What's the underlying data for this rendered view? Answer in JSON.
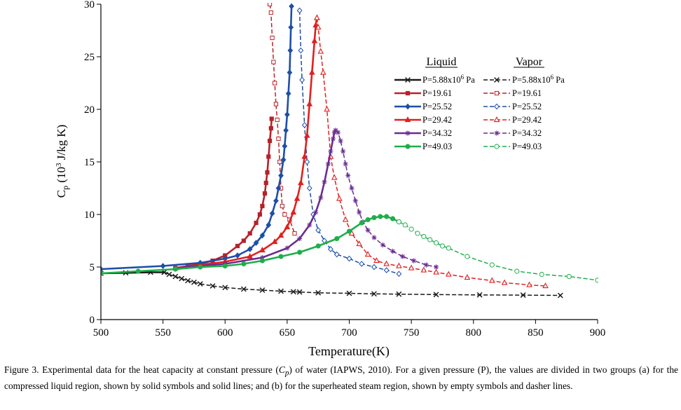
{
  "chart_data": {
    "type": "line",
    "xlabel": "Temperature(K)",
    "ylabel": "C",
    "ylabel_sub": "p",
    "ylabel_rest": " (10",
    "ylabel_sup": "3",
    "ylabel_units": " J/kg K)",
    "xlim": [
      500,
      900
    ],
    "ylim": [
      0,
      30
    ],
    "xticks": [
      500,
      550,
      600,
      650,
      700,
      750,
      800,
      850,
      900
    ],
    "yticks": [
      0,
      5,
      10,
      15,
      20,
      25,
      30
    ],
    "grid": false,
    "legend": {
      "placement": "top-right",
      "liquid_header": "Liquid",
      "vapor_header": "Vapor",
      "liquid_labels": [
        "P=5.88x10",
        "P=19.61",
        "P=25.52",
        "P=29.42",
        "P=34.32",
        "P=49.03"
      ],
      "vapor_labels": [
        "P=5.88x10",
        "P=19.61",
        "P=25.52",
        "P=29.42",
        "P=34.32",
        "P=49.03"
      ],
      "first_label_sup": "6",
      "first_label_unit": " Pa"
    },
    "series": [
      {
        "name": "P=5.88x10^6 Pa liquid",
        "phase": "liquid",
        "color": "#1a1a1a",
        "marker": "x",
        "filled": true,
        "points": [
          [
            500,
            4.4
          ],
          [
            520,
            4.45
          ],
          [
            540,
            4.5
          ],
          [
            551,
            4.5
          ]
        ]
      },
      {
        "name": "P=5.88x10^6 Pa vapor",
        "phase": "vapor",
        "color": "#1a1a1a",
        "marker": "x",
        "filled": false,
        "points": [
          [
            551,
            4.5
          ],
          [
            555,
            4.3
          ],
          [
            560,
            4.1
          ],
          [
            565,
            3.9
          ],
          [
            570,
            3.7
          ],
          [
            575,
            3.55
          ],
          [
            580,
            3.4
          ],
          [
            590,
            3.2
          ],
          [
            600,
            3.05
          ],
          [
            615,
            2.9
          ],
          [
            630,
            2.8
          ],
          [
            645,
            2.7
          ],
          [
            655,
            2.65
          ],
          [
            660,
            2.62
          ],
          [
            675,
            2.55
          ],
          [
            700,
            2.5
          ],
          [
            720,
            2.45
          ],
          [
            740,
            2.42
          ],
          [
            770,
            2.38
          ],
          [
            805,
            2.35
          ],
          [
            840,
            2.33
          ],
          [
            870,
            2.3
          ]
        ]
      },
      {
        "name": "P=19.61 liquid",
        "phase": "liquid",
        "color": "#b5232a",
        "marker": "square",
        "filled": true,
        "points": [
          [
            560,
            4.9
          ],
          [
            570,
            5.1
          ],
          [
            580,
            5.3
          ],
          [
            590,
            5.6
          ],
          [
            600,
            6.1
          ],
          [
            610,
            7.0
          ],
          [
            615,
            7.5
          ],
          [
            620,
            8.2
          ],
          [
            625,
            9.2
          ],
          [
            628,
            10.0
          ],
          [
            630,
            10.8
          ],
          [
            632,
            12.0
          ],
          [
            633,
            13.0
          ],
          [
            634,
            14.0
          ],
          [
            635,
            15.5
          ],
          [
            636,
            17.0
          ],
          [
            637,
            18.2
          ],
          [
            637.5,
            19.1
          ]
        ]
      },
      {
        "name": "P=19.61 vapor",
        "phase": "vapor",
        "color": "#b5232a",
        "marker": "square",
        "filled": false,
        "points": [
          [
            636,
            30.0
          ],
          [
            637,
            29.2
          ],
          [
            638,
            26.8
          ],
          [
            639,
            24.5
          ],
          [
            640,
            22.5
          ],
          [
            641,
            20.5
          ],
          [
            642,
            19.0
          ],
          [
            643,
            17.2
          ],
          [
            644,
            15.0
          ],
          [
            645,
            12.5
          ],
          [
            646,
            10.8
          ],
          [
            648,
            10.0
          ],
          [
            652,
            9.5
          ],
          [
            656,
            8.2
          ]
        ]
      },
      {
        "name": "P=25.52 liquid",
        "phase": "liquid",
        "color": "#1e4fa8",
        "marker": "diamond",
        "filled": true,
        "points": [
          [
            500,
            4.8
          ],
          [
            550,
            5.1
          ],
          [
            580,
            5.4
          ],
          [
            600,
            5.8
          ],
          [
            610,
            6.1
          ],
          [
            620,
            6.7
          ],
          [
            625,
            7.3
          ],
          [
            630,
            8.0
          ],
          [
            635,
            9.0
          ],
          [
            638,
            10.1
          ],
          [
            641,
            11.3
          ],
          [
            643,
            12.5
          ],
          [
            645,
            13.7
          ],
          [
            647,
            15.2
          ],
          [
            648,
            16.5
          ],
          [
            649,
            18.0
          ],
          [
            650,
            19.5
          ],
          [
            651,
            21.5
          ],
          [
            652,
            23.5
          ],
          [
            652.5,
            25.6
          ],
          [
            653,
            27.8
          ],
          [
            653.5,
            29.8
          ]
        ]
      },
      {
        "name": "P=25.52 vapor",
        "phase": "vapor",
        "color": "#1e4fa8",
        "marker": "diamond",
        "filled": false,
        "points": [
          [
            660,
            29.4
          ],
          [
            661,
            25.6
          ],
          [
            662,
            22.8
          ],
          [
            664,
            18.5
          ],
          [
            666,
            15.0
          ],
          [
            668,
            12.5
          ],
          [
            671,
            10.0
          ],
          [
            675,
            8.5
          ],
          [
            680,
            7.5
          ],
          [
            685,
            6.7
          ],
          [
            690,
            6.2
          ],
          [
            700,
            5.8
          ],
          [
            710,
            5.3
          ],
          [
            720,
            5.0
          ],
          [
            730,
            4.7
          ],
          [
            740,
            4.35
          ]
        ]
      },
      {
        "name": "P=29.42 liquid",
        "phase": "liquid",
        "color": "#e02020",
        "marker": "triangle",
        "filled": true,
        "points": [
          [
            560,
            4.9
          ],
          [
            600,
            5.5
          ],
          [
            620,
            6.0
          ],
          [
            630,
            6.6
          ],
          [
            640,
            7.4
          ],
          [
            645,
            8.0
          ],
          [
            650,
            8.8
          ],
          [
            655,
            10.2
          ],
          [
            658,
            11.5
          ],
          [
            661,
            13.0
          ],
          [
            664,
            15.5
          ],
          [
            666,
            17.5
          ],
          [
            668,
            20.5
          ],
          [
            670,
            23.5
          ],
          [
            672,
            26.5
          ],
          [
            673,
            28.0
          ],
          [
            674,
            28.7
          ]
        ]
      },
      {
        "name": "P=29.42 vapor",
        "phase": "vapor",
        "color": "#e02020",
        "marker": "triangle",
        "filled": false,
        "points": [
          [
            674,
            28.7
          ],
          [
            675,
            27.8
          ],
          [
            677,
            25.5
          ],
          [
            679,
            23.5
          ],
          [
            682,
            20.0
          ],
          [
            685,
            15.5
          ],
          [
            688,
            13.5
          ],
          [
            692,
            11.5
          ],
          [
            697,
            9.5
          ],
          [
            702,
            8.2
          ],
          [
            708,
            7.2
          ],
          [
            715,
            6.2
          ],
          [
            722,
            5.6
          ],
          [
            730,
            5.3
          ],
          [
            740,
            5.1
          ],
          [
            750,
            4.9
          ],
          [
            760,
            4.7
          ],
          [
            770,
            4.5
          ],
          [
            780,
            4.3
          ],
          [
            795,
            4.0
          ],
          [
            815,
            3.7
          ],
          [
            825,
            3.5
          ],
          [
            845,
            3.3
          ],
          [
            858,
            3.2
          ]
        ]
      },
      {
        "name": "P=34.32 liquid",
        "phase": "liquid",
        "color": "#6a2c91",
        "marker": "star",
        "filled": true,
        "points": [
          [
            560,
            4.9
          ],
          [
            600,
            5.3
          ],
          [
            630,
            5.9
          ],
          [
            650,
            6.8
          ],
          [
            660,
            7.7
          ],
          [
            668,
            9.0
          ],
          [
            673,
            10.2
          ],
          [
            677,
            11.6
          ],
          [
            680,
            13.1
          ],
          [
            683,
            14.8
          ],
          [
            685,
            16.0
          ],
          [
            687,
            17.2
          ],
          [
            688,
            17.8
          ],
          [
            689,
            18.0
          ]
        ]
      },
      {
        "name": "P=34.32 vapor",
        "phase": "vapor",
        "color": "#6a2c91",
        "marker": "star",
        "filled": false,
        "points": [
          [
            689,
            18.0
          ],
          [
            691,
            17.8
          ],
          [
            693,
            17.0
          ],
          [
            695,
            16.0
          ],
          [
            697,
            14.8
          ],
          [
            699,
            13.7
          ],
          [
            702,
            12.5
          ],
          [
            705,
            11.3
          ],
          [
            708,
            10.2
          ],
          [
            711,
            9.3
          ],
          [
            715,
            8.5
          ],
          [
            720,
            7.8
          ],
          [
            727,
            7.1
          ],
          [
            735,
            6.5
          ],
          [
            743,
            6.0
          ],
          [
            752,
            5.6
          ],
          [
            762,
            5.2
          ],
          [
            770,
            5.0
          ]
        ]
      },
      {
        "name": "P=49.03 liquid",
        "phase": "liquid",
        "color": "#1fae4b",
        "marker": "circle",
        "filled": true,
        "points": [
          [
            500,
            4.4
          ],
          [
            530,
            4.6
          ],
          [
            560,
            4.8
          ],
          [
            580,
            5.0
          ],
          [
            600,
            5.1
          ],
          [
            615,
            5.3
          ],
          [
            630,
            5.6
          ],
          [
            645,
            6.0
          ],
          [
            660,
            6.4
          ],
          [
            675,
            7.0
          ],
          [
            690,
            7.7
          ],
          [
            700,
            8.4
          ],
          [
            710,
            9.2
          ],
          [
            715,
            9.5
          ],
          [
            720,
            9.7
          ],
          [
            725,
            9.8
          ],
          [
            730,
            9.8
          ],
          [
            735,
            9.6
          ],
          [
            740,
            9.3
          ]
        ]
      },
      {
        "name": "P=49.03 vapor",
        "phase": "vapor",
        "color": "#1fae4b",
        "marker": "circle",
        "filled": false,
        "points": [
          [
            740,
            9.3
          ],
          [
            745,
            9.0
          ],
          [
            750,
            8.6
          ],
          [
            755,
            8.2
          ],
          [
            760,
            7.9
          ],
          [
            765,
            7.6
          ],
          [
            770,
            7.3
          ],
          [
            775,
            7.0
          ],
          [
            780,
            6.8
          ],
          [
            795,
            6.0
          ],
          [
            815,
            5.2
          ],
          [
            835,
            4.6
          ],
          [
            855,
            4.3
          ],
          [
            877,
            4.1
          ],
          [
            900,
            3.75
          ]
        ]
      }
    ]
  },
  "caption": {
    "part1": "Figure 3. Experimental data for the heat capacity at constant pressure (",
    "cp_main": "C",
    "cp_sub": "p",
    "part2": ") of water (IAPWS, 2010). For a given pressure (P), the values are divided in two groups (a) for the compressed liquid region, shown by solid symbols and solid lines; and (b) for the superheated steam region, shown by empty symbols and dasher lines."
  }
}
